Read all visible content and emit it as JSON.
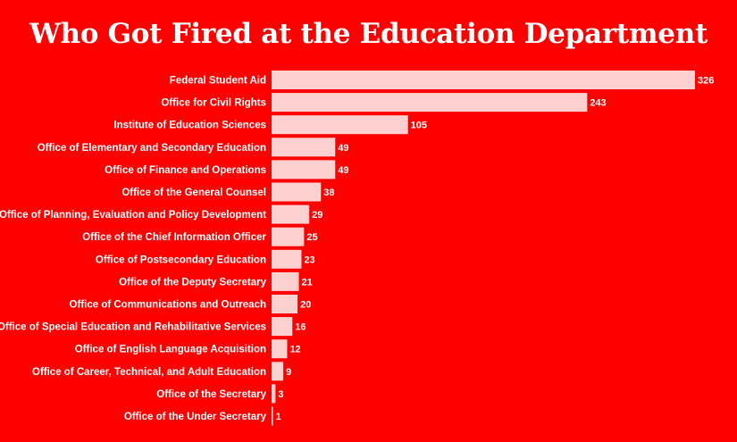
{
  "colors": {
    "background": "#ff0000",
    "bar": "#ffd0d0",
    "text": "#ffffff"
  },
  "chart_data": {
    "type": "bar",
    "orientation": "horizontal",
    "title": "Who Got Fired at the Education Department",
    "grid": false,
    "legend": "none",
    "xlim": [
      0,
      326
    ],
    "categories": [
      "Federal Student Aid",
      "Office for Civil Rights",
      "Institute of Education Sciences",
      "Office of Elementary and Secondary Education",
      "Office of Finance and Operations",
      "Office of the General Counsel",
      "Office of Planning, Evaluation and Policy Development",
      "Office of the Chief Information Officer",
      "Office of Postsecondary Education",
      "Office of the Deputy Secretary",
      "Office of Communications and Outreach",
      "Office of Special Education and Rehabilitative Services",
      "Office of English Language Acquisition",
      "Office of Career, Technical, and Adult Education",
      "Office of the Secretary",
      "Office of the Under Secretary"
    ],
    "values": [
      326,
      243,
      105,
      49,
      49,
      38,
      29,
      25,
      23,
      21,
      20,
      16,
      12,
      9,
      3,
      1
    ]
  }
}
